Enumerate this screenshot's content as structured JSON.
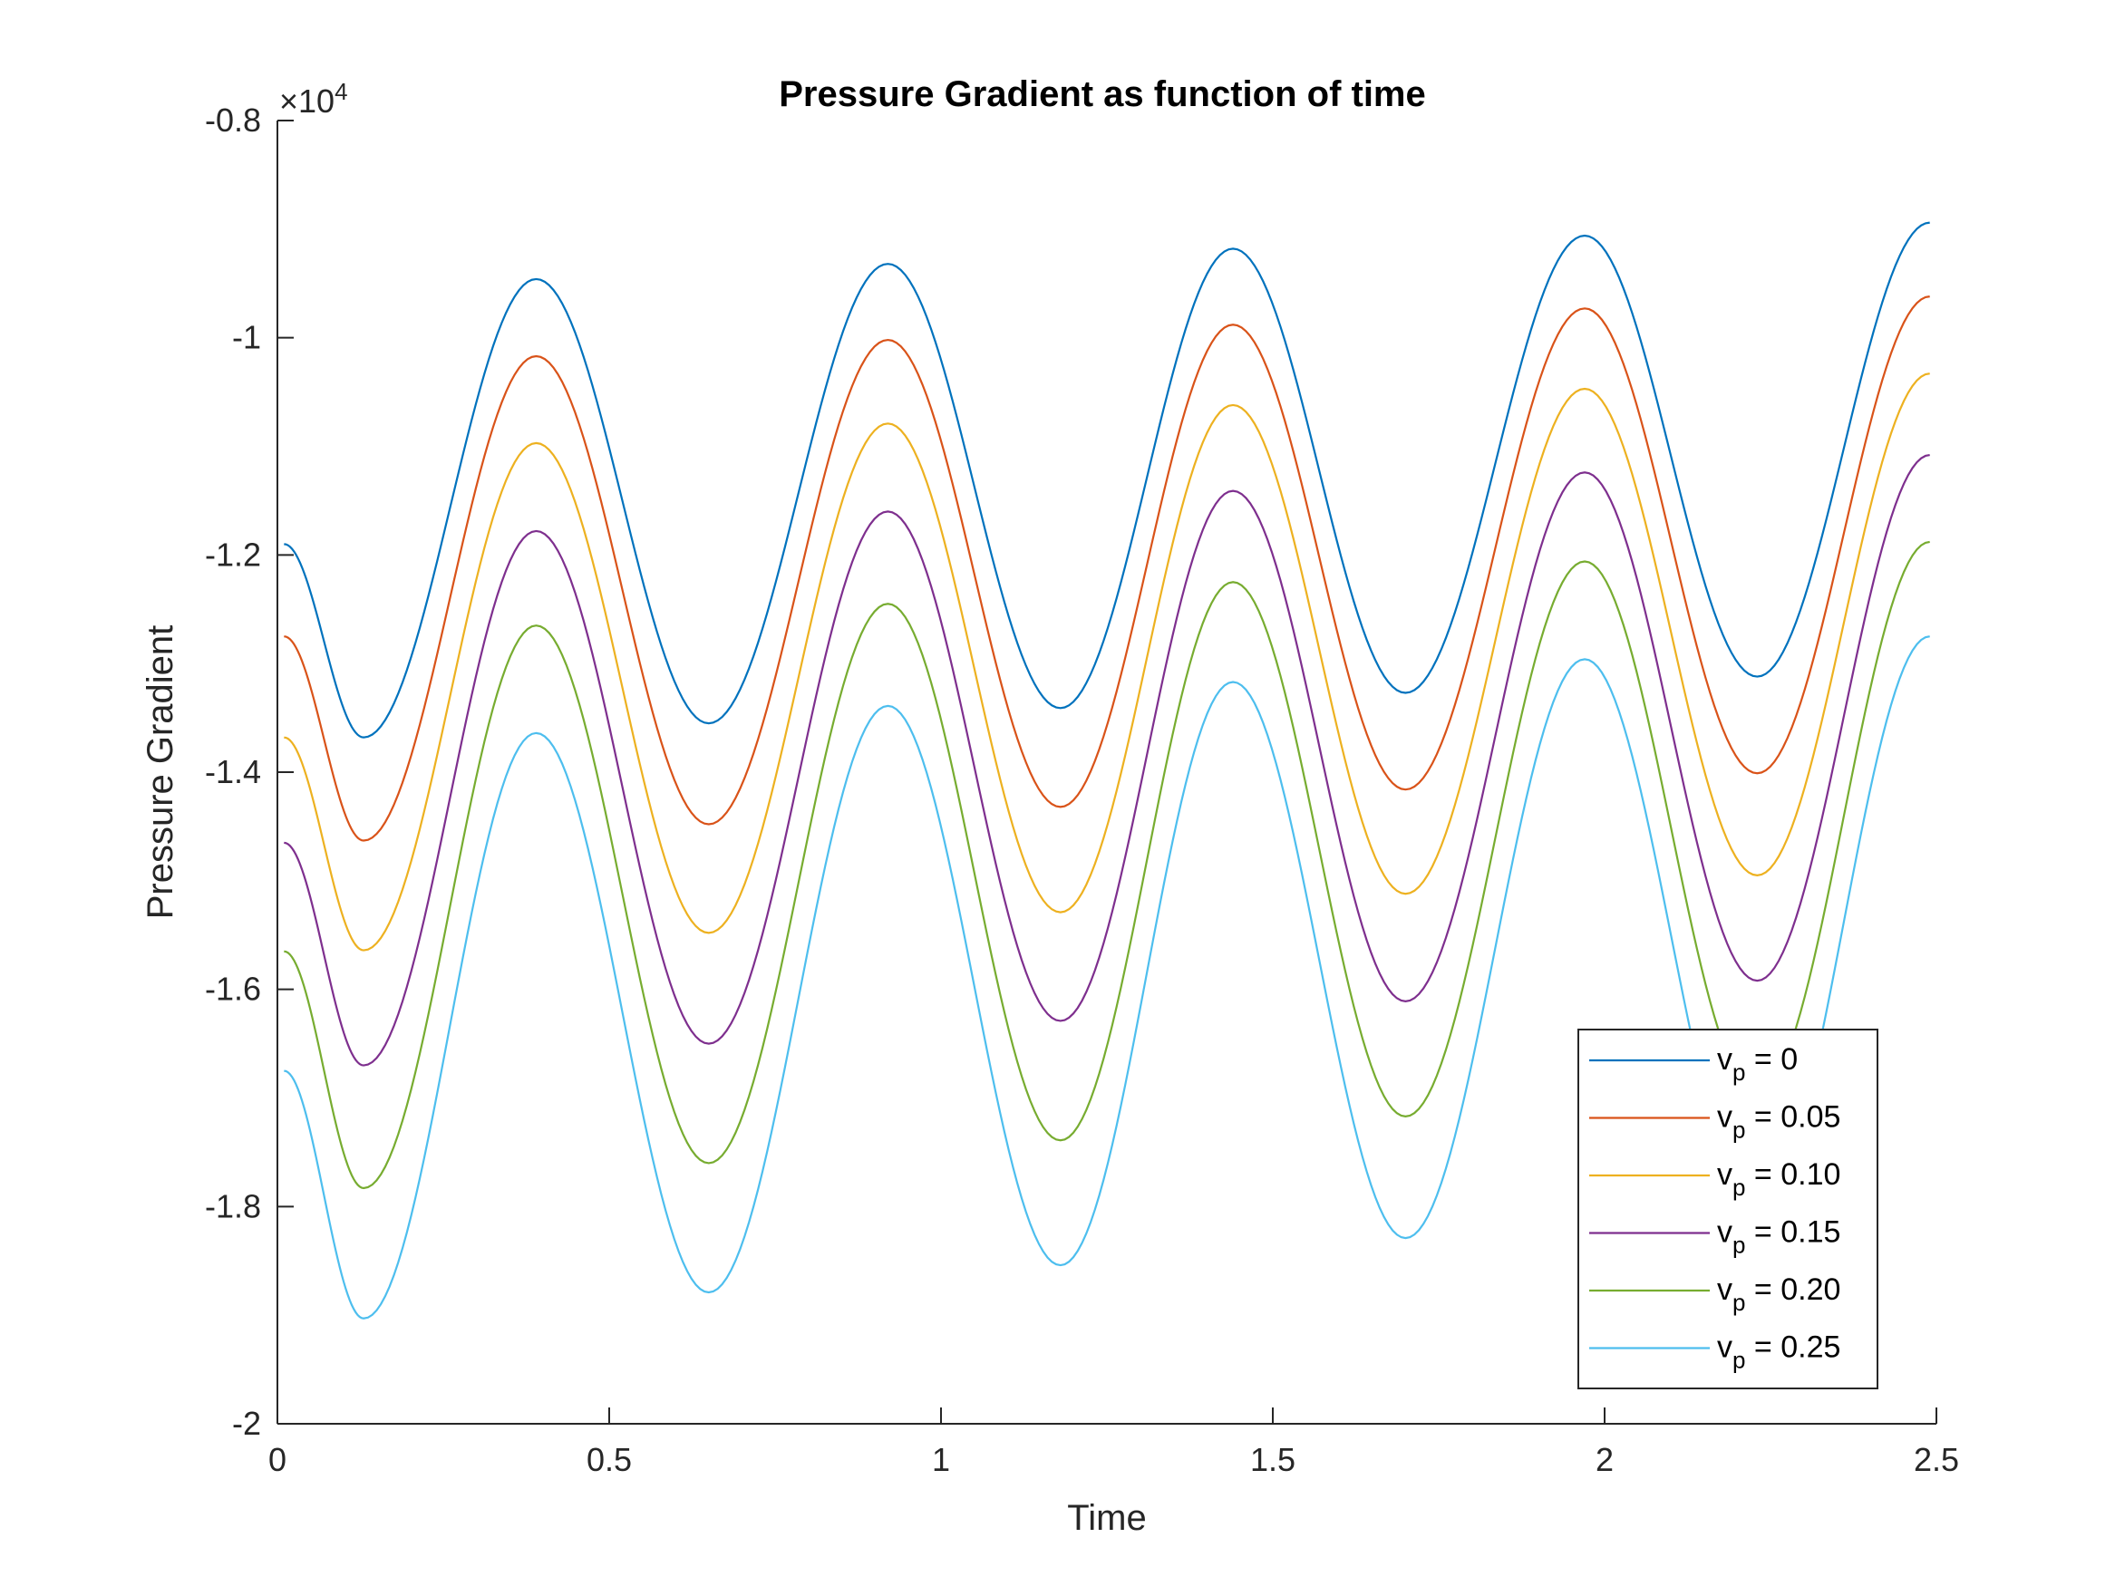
{
  "chart_data": {
    "type": "line",
    "title": "Pressure Gradient as function of time",
    "xlabel": "Time",
    "ylabel": "Pressure Gradient",
    "xlim": [
      0,
      2.5
    ],
    "ylim": [
      -20000,
      -8000
    ],
    "y_exponent_label": "×10",
    "y_exponent_power": "4",
    "x_ticks": [
      0,
      0.5,
      1,
      1.5,
      2,
      2.5
    ],
    "x_tick_labels": [
      "0",
      "0.5",
      "1",
      "1.5",
      "2",
      "2.5"
    ],
    "y_ticks": [
      -20000,
      -18000,
      -16000,
      -14000,
      -12000,
      -10000,
      -8000
    ],
    "y_tick_labels": [
      "-2",
      "-1.8",
      "-1.6",
      "-1.4",
      "-1.2",
      "-1",
      "-0.8"
    ],
    "grid": false,
    "legend_position": "bottom-right",
    "period": 1.05,
    "t_range": [
      0.01,
      2.5
    ],
    "series": [
      {
        "name_base": "v",
        "name_sub": "p",
        "name_value": " = 0",
        "color": "#0072BD",
        "points": [
          [
            0.01,
            -11900
          ],
          [
            0.13,
            -13680
          ],
          [
            0.39,
            -9460
          ],
          [
            0.65,
            -13550
          ],
          [
            0.92,
            -9320
          ],
          [
            1.18,
            -13410
          ],
          [
            1.44,
            -9180
          ],
          [
            1.7,
            -13270
          ],
          [
            1.97,
            -9060
          ],
          [
            2.23,
            -13120
          ],
          [
            2.49,
            -8940
          ]
        ]
      },
      {
        "name_base": "v",
        "name_sub": "p",
        "name_value": " = 0.05",
        "color": "#D95319",
        "points": [
          [
            0.01,
            -12750
          ],
          [
            0.13,
            -14630
          ],
          [
            0.39,
            -10170
          ],
          [
            0.65,
            -14480
          ],
          [
            0.92,
            -10020
          ],
          [
            1.18,
            -14320
          ],
          [
            1.44,
            -9880
          ],
          [
            1.7,
            -14160
          ],
          [
            1.97,
            -9730
          ],
          [
            2.23,
            -14010
          ],
          [
            2.49,
            -9620
          ]
        ]
      },
      {
        "name_base": "v",
        "name_sub": "p",
        "name_value": " = 0.10",
        "color": "#EDB120",
        "points": [
          [
            0.01,
            -13680
          ],
          [
            0.13,
            -15640
          ],
          [
            0.39,
            -10970
          ],
          [
            0.65,
            -15480
          ],
          [
            0.92,
            -10790
          ],
          [
            1.18,
            -15290
          ],
          [
            1.44,
            -10620
          ],
          [
            1.7,
            -15120
          ],
          [
            1.97,
            -10470
          ],
          [
            2.23,
            -14950
          ],
          [
            2.49,
            -10330
          ]
        ]
      },
      {
        "name_base": "v",
        "name_sub": "p",
        "name_value": " = 0.15",
        "color": "#7E2F8E",
        "points": [
          [
            0.01,
            -14650
          ],
          [
            0.13,
            -16700
          ],
          [
            0.39,
            -11780
          ],
          [
            0.65,
            -16500
          ],
          [
            0.92,
            -11600
          ],
          [
            1.18,
            -16290
          ],
          [
            1.44,
            -11410
          ],
          [
            1.7,
            -16110
          ],
          [
            1.97,
            -11240
          ],
          [
            2.23,
            -15920
          ],
          [
            2.49,
            -11080
          ]
        ]
      },
      {
        "name_base": "v",
        "name_sub": "p",
        "name_value": " = 0.20",
        "color": "#77AC30",
        "points": [
          [
            0.01,
            -15650
          ],
          [
            0.13,
            -17830
          ],
          [
            0.39,
            -12650
          ],
          [
            0.65,
            -17600
          ],
          [
            0.92,
            -12450
          ],
          [
            1.18,
            -17390
          ],
          [
            1.44,
            -12250
          ],
          [
            1.7,
            -17170
          ],
          [
            1.97,
            -12060
          ],
          [
            2.23,
            -16960
          ],
          [
            2.49,
            -11880
          ]
        ]
      },
      {
        "name_base": "v",
        "name_sub": "p",
        "name_value": " = 0.25",
        "color": "#4DBEEE",
        "points": [
          [
            0.01,
            -16750
          ],
          [
            0.13,
            -19030
          ],
          [
            0.39,
            -13640
          ],
          [
            0.65,
            -18790
          ],
          [
            0.92,
            -13390
          ],
          [
            1.18,
            -18540
          ],
          [
            1.44,
            -13170
          ],
          [
            1.7,
            -18290
          ],
          [
            1.97,
            -12960
          ],
          [
            2.23,
            -18040
          ],
          [
            2.49,
            -12750
          ]
        ]
      }
    ]
  }
}
